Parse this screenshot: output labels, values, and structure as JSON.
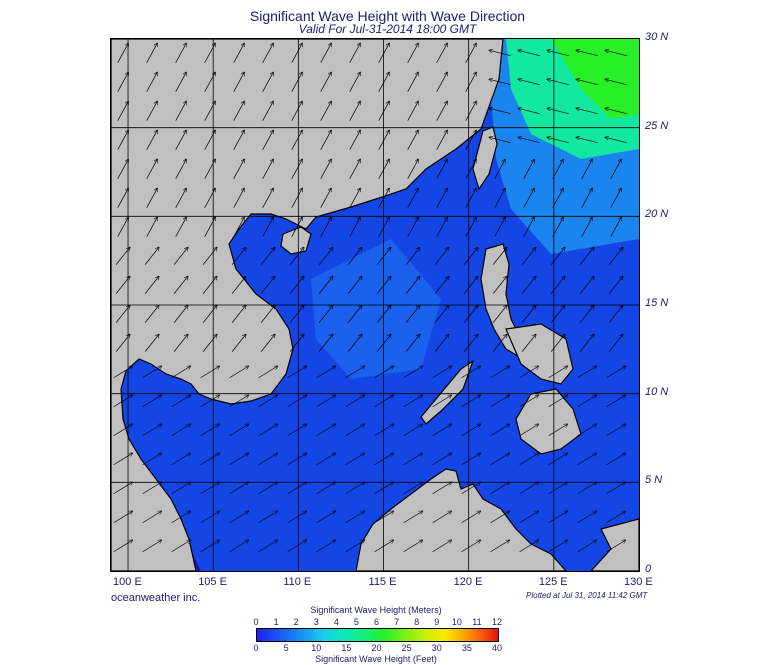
{
  "header": {
    "title": "Significant Wave Height with Wave Direction",
    "subtitle": "Valid For Jul-31-2014 18:00 GMT"
  },
  "map": {
    "lon_range": [
      99,
      130
    ],
    "lat_range": [
      0,
      30
    ],
    "lat_labels": [
      "30 N",
      "25 N",
      "20 N",
      "15 N",
      "10 N",
      "5 N",
      "0"
    ],
    "lon_labels": [
      "100 E",
      "105 E",
      "110 E",
      "115 E",
      "120 E",
      "125 E",
      "130 E"
    ],
    "colors": {
      "land": "#c0c0c0",
      "sea_base": "#1446e6",
      "sea_light": "#1c8cf0",
      "sea_green": "#12e8a0",
      "sea_bright_green": "#28f028",
      "deep": "#1818b0",
      "arrow": "#000000"
    }
  },
  "footer": {
    "credit": "oceanweather inc.",
    "plotted": "Plotted at Jul 31, 2014 11:42 GMT"
  },
  "colorbar": {
    "title_top": "Significant Wave Height (Meters)",
    "title_bottom": "Significant Wave Height (Feet)",
    "meters_ticks": [
      "0",
      "1",
      "2",
      "3",
      "4",
      "5",
      "6",
      "7",
      "8",
      "9",
      "10",
      "11",
      "12"
    ],
    "feet_ticks": [
      "0",
      "5",
      "10",
      "15",
      "20",
      "25",
      "30",
      "35",
      "40"
    ]
  }
}
